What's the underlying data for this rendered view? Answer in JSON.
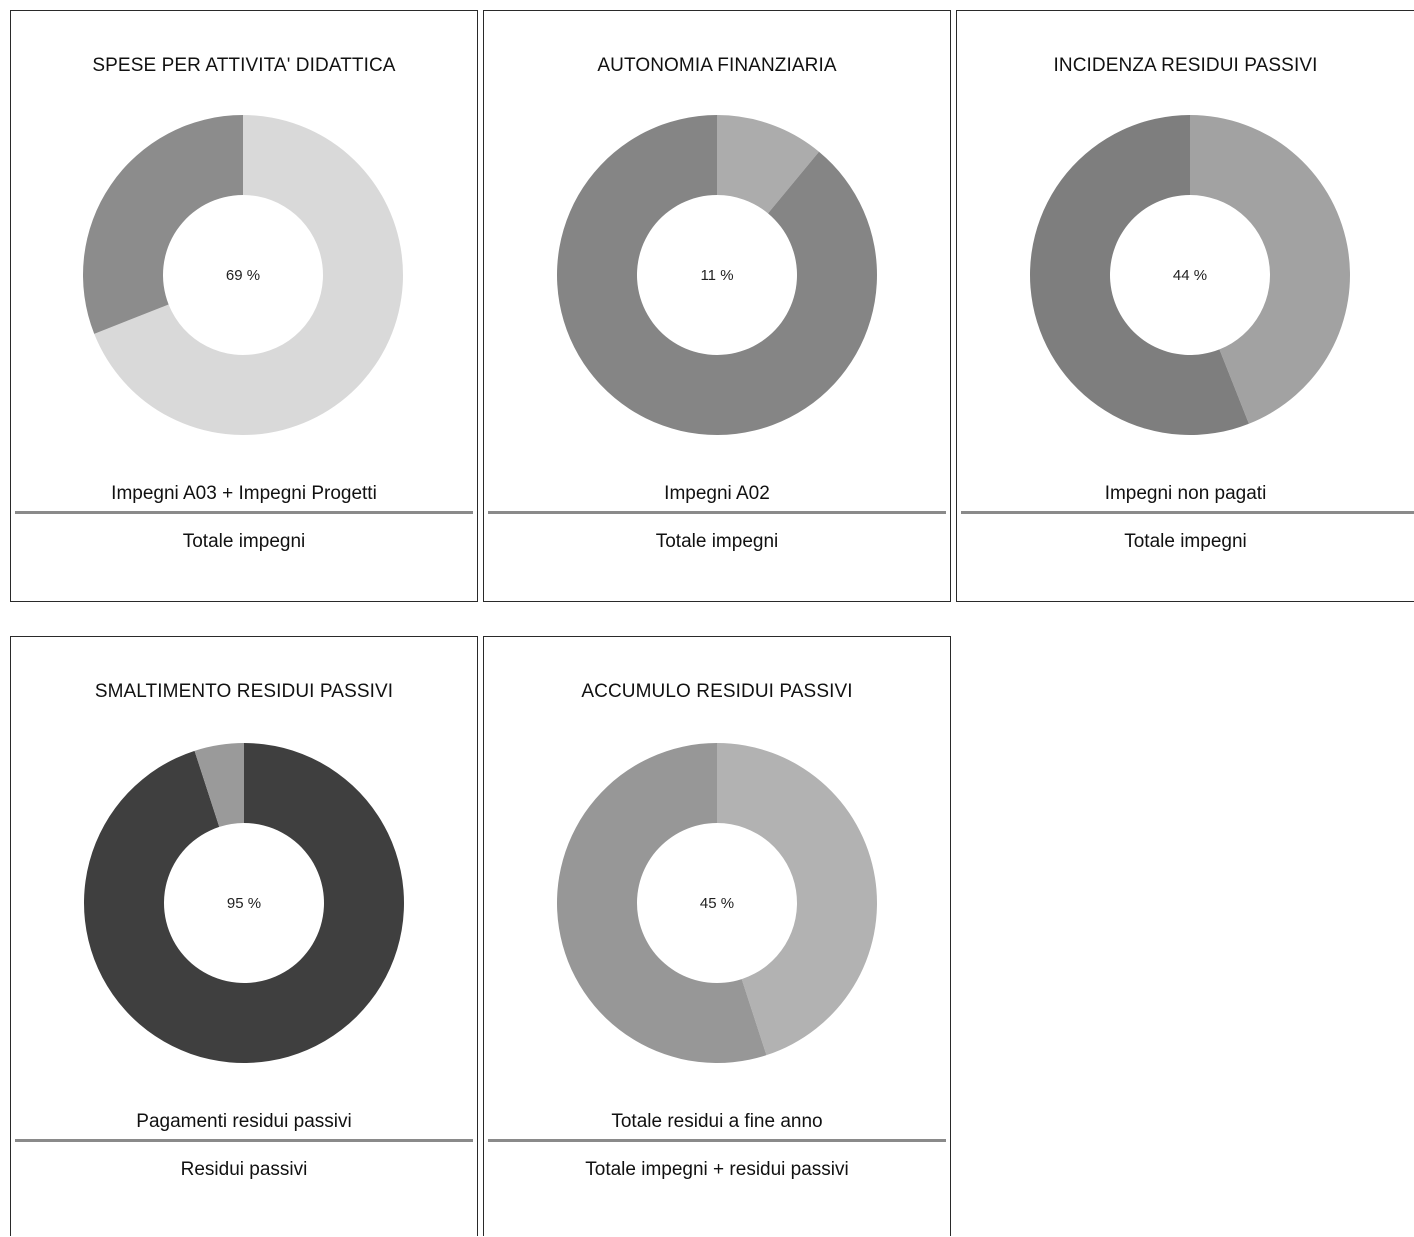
{
  "chart_data": [
    {
      "type": "pie",
      "title": "SPESE PER ATTIVITA' DIDATTICA",
      "value_percent": 69,
      "center_label": "69 %",
      "numerator_label": "Impegni A03 + Impegni Progetti",
      "denominator_label": "Totale impegni",
      "colors": {
        "value": "#d9d9d9",
        "remainder": "#8c8c8c"
      }
    },
    {
      "type": "pie",
      "title": "AUTONOMIA FINANZIARIA",
      "value_percent": 11,
      "center_label": "11 %",
      "numerator_label": "Impegni A02",
      "denominator_label": "Totale impegni",
      "colors": {
        "value": "#acacac",
        "remainder": "#858585"
      }
    },
    {
      "type": "pie",
      "title": "INCIDENZA RESIDUI PASSIVI",
      "value_percent": 44,
      "center_label": "44 %",
      "numerator_label": "Impegni non pagati",
      "denominator_label": "Totale impegni",
      "colors": {
        "value": "#a2a2a2",
        "remainder": "#7e7e7e"
      }
    },
    {
      "type": "pie",
      "title": "SMALTIMENTO RESIDUI PASSIVI",
      "value_percent": 95,
      "center_label": "95 %",
      "numerator_label": "Pagamenti residui passivi",
      "denominator_label": "Residui passivi",
      "colors": {
        "value": "#3f3f3f",
        "remainder": "#9a9a9a"
      }
    },
    {
      "type": "pie",
      "title": "ACCUMULO RESIDUI PASSIVI",
      "value_percent": 45,
      "center_label": "45 %",
      "numerator_label": "Totale residui a fine anno",
      "denominator_label": "Totale impegni + residui passivi",
      "colors": {
        "value": "#b2b2b2",
        "remainder": "#979797"
      }
    }
  ]
}
